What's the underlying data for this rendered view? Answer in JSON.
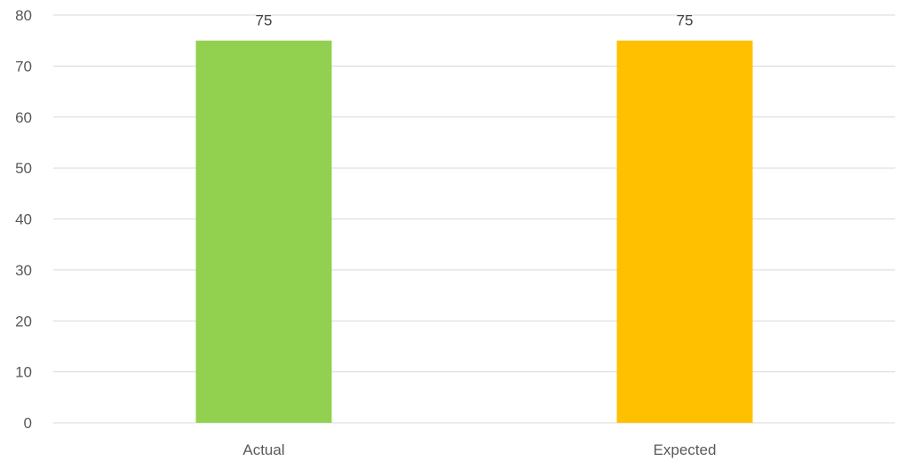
{
  "chart_data": {
    "type": "bar",
    "title": "",
    "xlabel": "",
    "ylabel": "",
    "categories": [
      "Actual",
      "Expected"
    ],
    "values": [
      75,
      75
    ],
    "colors": [
      "#92d050",
      "#ffc000"
    ],
    "data_labels": [
      "75",
      "75"
    ],
    "ylim": [
      0,
      80
    ],
    "yticks": [
      0,
      10,
      20,
      30,
      40,
      50,
      60,
      70,
      80
    ],
    "ytick_labels": [
      "0",
      "10",
      "20",
      "30",
      "40",
      "50",
      "60",
      "70",
      "80"
    ],
    "grid": true,
    "legend": "none",
    "gridline_color": "#d9d9d9"
  }
}
